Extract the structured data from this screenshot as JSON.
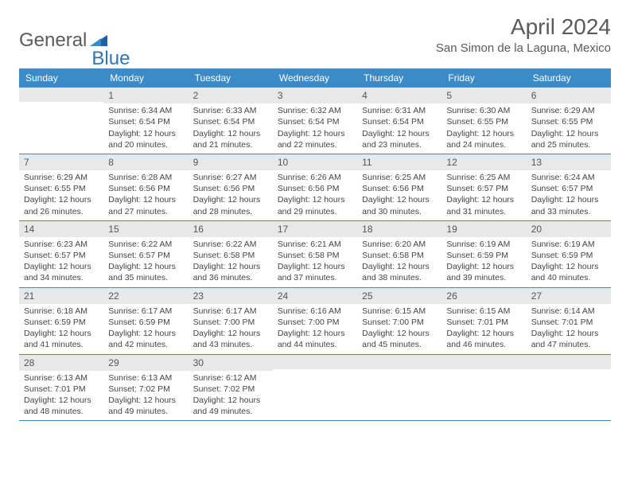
{
  "logo": {
    "part1": "General",
    "part2": "Blue"
  },
  "title": "April 2024",
  "location": "San Simon de la Laguna, Mexico",
  "colors": {
    "header_bg": "#3b8bc9",
    "header_text": "#ffffff",
    "daynum_bg": "#e8e8e8",
    "body_text": "#444444",
    "title_text": "#5a5a5a",
    "logo_gray": "#5a5a5a",
    "logo_blue": "#2e75b6",
    "border": "#3b8bc9"
  },
  "typography": {
    "title_size_pt": 21,
    "location_size_pt": 11,
    "header_size_pt": 9,
    "cell_size_pt": 8,
    "daynum_size_pt": 9
  },
  "day_labels": [
    "Sunday",
    "Monday",
    "Tuesday",
    "Wednesday",
    "Thursday",
    "Friday",
    "Saturday"
  ],
  "weeks": [
    [
      {
        "n": "",
        "sr": "",
        "ss": "",
        "dl": ""
      },
      {
        "n": "1",
        "sr": "Sunrise: 6:34 AM",
        "ss": "Sunset: 6:54 PM",
        "dl": "Daylight: 12 hours and 20 minutes."
      },
      {
        "n": "2",
        "sr": "Sunrise: 6:33 AM",
        "ss": "Sunset: 6:54 PM",
        "dl": "Daylight: 12 hours and 21 minutes."
      },
      {
        "n": "3",
        "sr": "Sunrise: 6:32 AM",
        "ss": "Sunset: 6:54 PM",
        "dl": "Daylight: 12 hours and 22 minutes."
      },
      {
        "n": "4",
        "sr": "Sunrise: 6:31 AM",
        "ss": "Sunset: 6:54 PM",
        "dl": "Daylight: 12 hours and 23 minutes."
      },
      {
        "n": "5",
        "sr": "Sunrise: 6:30 AM",
        "ss": "Sunset: 6:55 PM",
        "dl": "Daylight: 12 hours and 24 minutes."
      },
      {
        "n": "6",
        "sr": "Sunrise: 6:29 AM",
        "ss": "Sunset: 6:55 PM",
        "dl": "Daylight: 12 hours and 25 minutes."
      }
    ],
    [
      {
        "n": "7",
        "sr": "Sunrise: 6:29 AM",
        "ss": "Sunset: 6:55 PM",
        "dl": "Daylight: 12 hours and 26 minutes."
      },
      {
        "n": "8",
        "sr": "Sunrise: 6:28 AM",
        "ss": "Sunset: 6:56 PM",
        "dl": "Daylight: 12 hours and 27 minutes."
      },
      {
        "n": "9",
        "sr": "Sunrise: 6:27 AM",
        "ss": "Sunset: 6:56 PM",
        "dl": "Daylight: 12 hours and 28 minutes."
      },
      {
        "n": "10",
        "sr": "Sunrise: 6:26 AM",
        "ss": "Sunset: 6:56 PM",
        "dl": "Daylight: 12 hours and 29 minutes."
      },
      {
        "n": "11",
        "sr": "Sunrise: 6:25 AM",
        "ss": "Sunset: 6:56 PM",
        "dl": "Daylight: 12 hours and 30 minutes."
      },
      {
        "n": "12",
        "sr": "Sunrise: 6:25 AM",
        "ss": "Sunset: 6:57 PM",
        "dl": "Daylight: 12 hours and 31 minutes."
      },
      {
        "n": "13",
        "sr": "Sunrise: 6:24 AM",
        "ss": "Sunset: 6:57 PM",
        "dl": "Daylight: 12 hours and 33 minutes."
      }
    ],
    [
      {
        "n": "14",
        "sr": "Sunrise: 6:23 AM",
        "ss": "Sunset: 6:57 PM",
        "dl": "Daylight: 12 hours and 34 minutes."
      },
      {
        "n": "15",
        "sr": "Sunrise: 6:22 AM",
        "ss": "Sunset: 6:57 PM",
        "dl": "Daylight: 12 hours and 35 minutes."
      },
      {
        "n": "16",
        "sr": "Sunrise: 6:22 AM",
        "ss": "Sunset: 6:58 PM",
        "dl": "Daylight: 12 hours and 36 minutes."
      },
      {
        "n": "17",
        "sr": "Sunrise: 6:21 AM",
        "ss": "Sunset: 6:58 PM",
        "dl": "Daylight: 12 hours and 37 minutes."
      },
      {
        "n": "18",
        "sr": "Sunrise: 6:20 AM",
        "ss": "Sunset: 6:58 PM",
        "dl": "Daylight: 12 hours and 38 minutes."
      },
      {
        "n": "19",
        "sr": "Sunrise: 6:19 AM",
        "ss": "Sunset: 6:59 PM",
        "dl": "Daylight: 12 hours and 39 minutes."
      },
      {
        "n": "20",
        "sr": "Sunrise: 6:19 AM",
        "ss": "Sunset: 6:59 PM",
        "dl": "Daylight: 12 hours and 40 minutes."
      }
    ],
    [
      {
        "n": "21",
        "sr": "Sunrise: 6:18 AM",
        "ss": "Sunset: 6:59 PM",
        "dl": "Daylight: 12 hours and 41 minutes."
      },
      {
        "n": "22",
        "sr": "Sunrise: 6:17 AM",
        "ss": "Sunset: 6:59 PM",
        "dl": "Daylight: 12 hours and 42 minutes."
      },
      {
        "n": "23",
        "sr": "Sunrise: 6:17 AM",
        "ss": "Sunset: 7:00 PM",
        "dl": "Daylight: 12 hours and 43 minutes."
      },
      {
        "n": "24",
        "sr": "Sunrise: 6:16 AM",
        "ss": "Sunset: 7:00 PM",
        "dl": "Daylight: 12 hours and 44 minutes."
      },
      {
        "n": "25",
        "sr": "Sunrise: 6:15 AM",
        "ss": "Sunset: 7:00 PM",
        "dl": "Daylight: 12 hours and 45 minutes."
      },
      {
        "n": "26",
        "sr": "Sunrise: 6:15 AM",
        "ss": "Sunset: 7:01 PM",
        "dl": "Daylight: 12 hours and 46 minutes."
      },
      {
        "n": "27",
        "sr": "Sunrise: 6:14 AM",
        "ss": "Sunset: 7:01 PM",
        "dl": "Daylight: 12 hours and 47 minutes."
      }
    ],
    [
      {
        "n": "28",
        "sr": "Sunrise: 6:13 AM",
        "ss": "Sunset: 7:01 PM",
        "dl": "Daylight: 12 hours and 48 minutes."
      },
      {
        "n": "29",
        "sr": "Sunrise: 6:13 AM",
        "ss": "Sunset: 7:02 PM",
        "dl": "Daylight: 12 hours and 49 minutes."
      },
      {
        "n": "30",
        "sr": "Sunrise: 6:12 AM",
        "ss": "Sunset: 7:02 PM",
        "dl": "Daylight: 12 hours and 49 minutes."
      },
      {
        "n": "",
        "sr": "",
        "ss": "",
        "dl": ""
      },
      {
        "n": "",
        "sr": "",
        "ss": "",
        "dl": ""
      },
      {
        "n": "",
        "sr": "",
        "ss": "",
        "dl": ""
      },
      {
        "n": "",
        "sr": "",
        "ss": "",
        "dl": ""
      }
    ]
  ]
}
